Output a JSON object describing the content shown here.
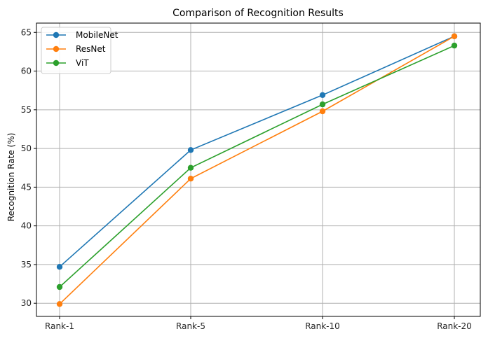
{
  "chart_data": {
    "type": "line",
    "title": "Comparison of Recognition Results",
    "xlabel": "",
    "ylabel": "Recognition Rate (%)",
    "categories": [
      "Rank-1",
      "Rank-5",
      "Rank-10",
      "Rank-20"
    ],
    "ylim": [
      28.3,
      66.2
    ],
    "yticks": [
      30,
      35,
      40,
      45,
      50,
      55,
      60,
      65
    ],
    "grid": true,
    "legend_position": "top-left",
    "series": [
      {
        "name": "MobileNet",
        "color": "#1f77b4",
        "values": [
          34.7,
          49.8,
          56.9,
          64.5
        ]
      },
      {
        "name": "ResNet",
        "color": "#ff7f0e",
        "values": [
          29.9,
          46.1,
          54.8,
          64.5
        ]
      },
      {
        "name": "ViT",
        "color": "#2ca02c",
        "values": [
          32.1,
          47.5,
          55.7,
          63.3
        ]
      }
    ]
  }
}
